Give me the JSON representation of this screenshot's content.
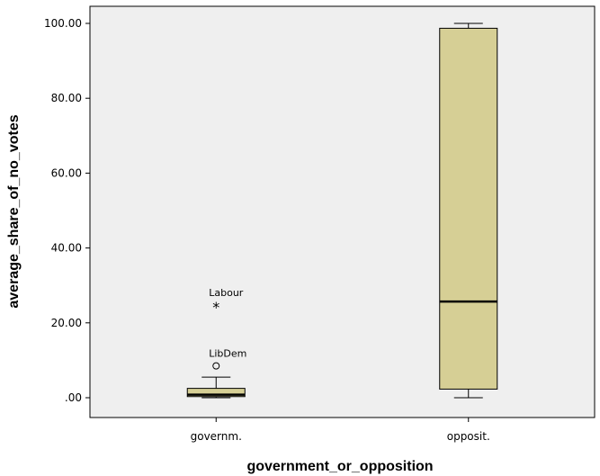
{
  "chart_data": {
    "type": "boxplot",
    "xlabel": "government_or_opposition",
    "ylabel": "average_share_of_no_votes",
    "ylim": [
      0,
      105
    ],
    "yticks": [
      0,
      20,
      40,
      60,
      80,
      100
    ],
    "ytick_labels": [
      ".00",
      "20.00",
      "40.00",
      "60.00",
      "80.00",
      "100.00"
    ],
    "grid": false,
    "colors": {
      "box_fill": "#d6cf95",
      "plot_background": "#efefef",
      "frame": "#000000"
    },
    "categories": [
      "governm.",
      "opposit."
    ],
    "boxes": [
      {
        "category": "governm.",
        "whisker_low": 0.0,
        "q1": 0.3,
        "median": 0.8,
        "q3": 2.5,
        "whisker_high": 5.5,
        "outliers": [
          {
            "label": "LibDem",
            "value": 8.5,
            "marker": "circle"
          },
          {
            "label": "Labour",
            "value": 24.8,
            "marker": "star"
          }
        ]
      },
      {
        "category": "opposit.",
        "whisker_low": 0.0,
        "q1": 2.3,
        "median": 25.7,
        "q3": 98.7,
        "whisker_high": 100.0,
        "outliers": []
      }
    ]
  }
}
